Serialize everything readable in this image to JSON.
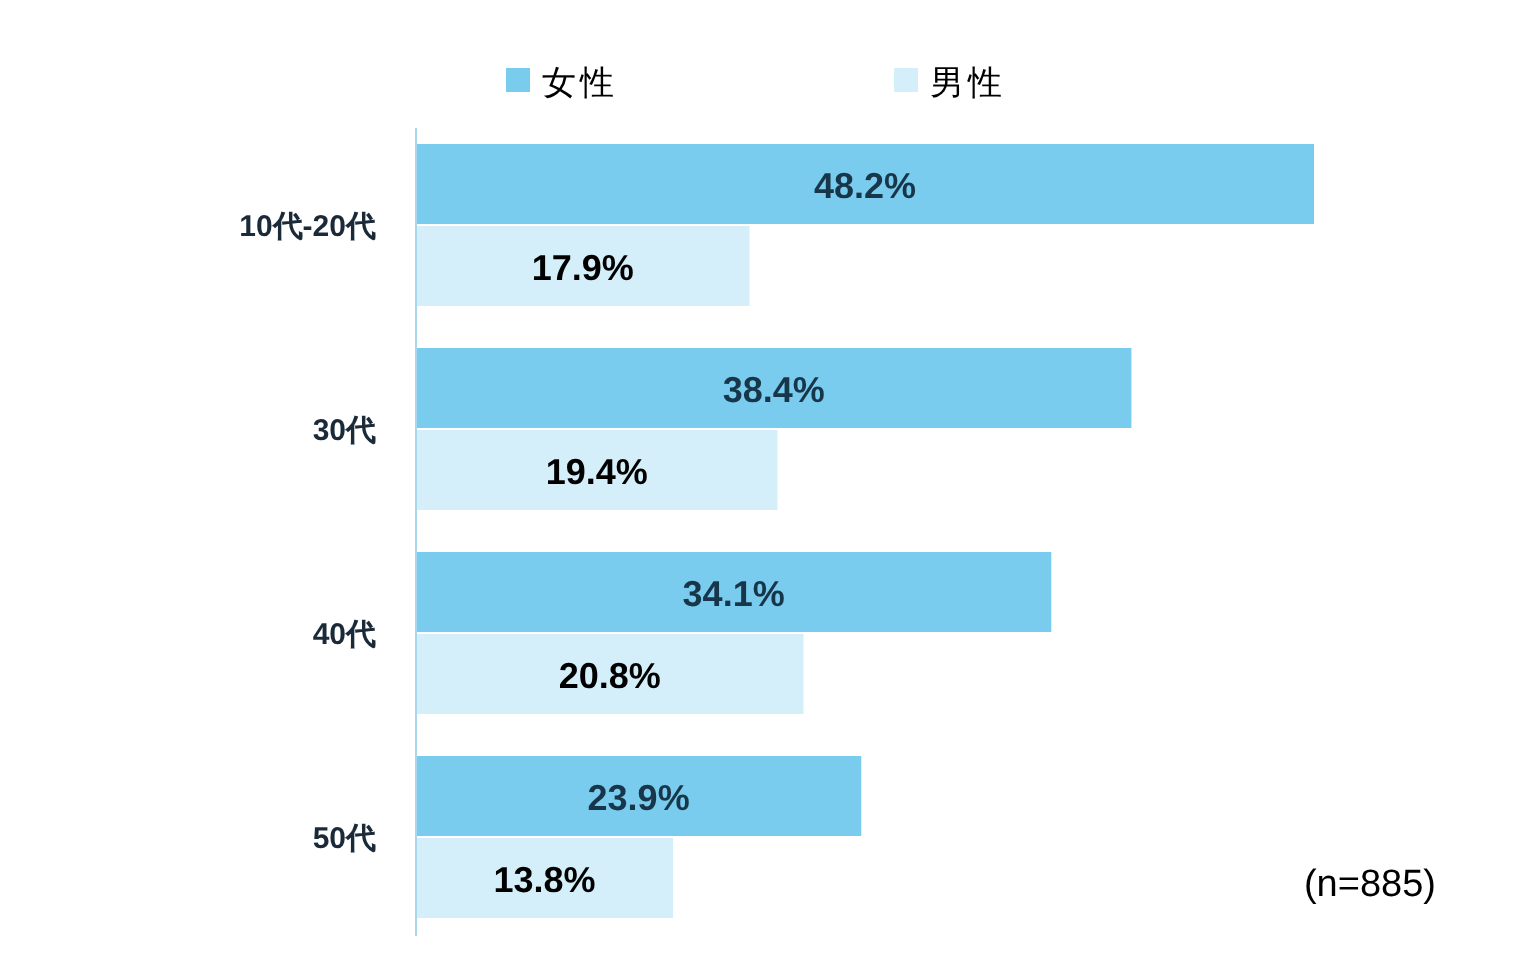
{
  "chart_data": {
    "type": "bar",
    "orientation": "horizontal",
    "categories": [
      "10代-20代",
      "30代",
      "40代",
      "50代"
    ],
    "series": [
      {
        "name": "女性",
        "color": "#7accef",
        "values": [
          48.2,
          38.4,
          34.1,
          23.9
        ],
        "value_labels": [
          "48.2%",
          "38.4%",
          "34.1%",
          "23.9%"
        ]
      },
      {
        "name": "男性",
        "color": "#d4eff9",
        "values": [
          17.9,
          19.4,
          20.8,
          13.8
        ],
        "value_labels": [
          "17.9%",
          "19.4%",
          "20.8%",
          "13.8%"
        ]
      }
    ],
    "legend": "top",
    "annotations": [
      "(n=885)"
    ]
  }
}
